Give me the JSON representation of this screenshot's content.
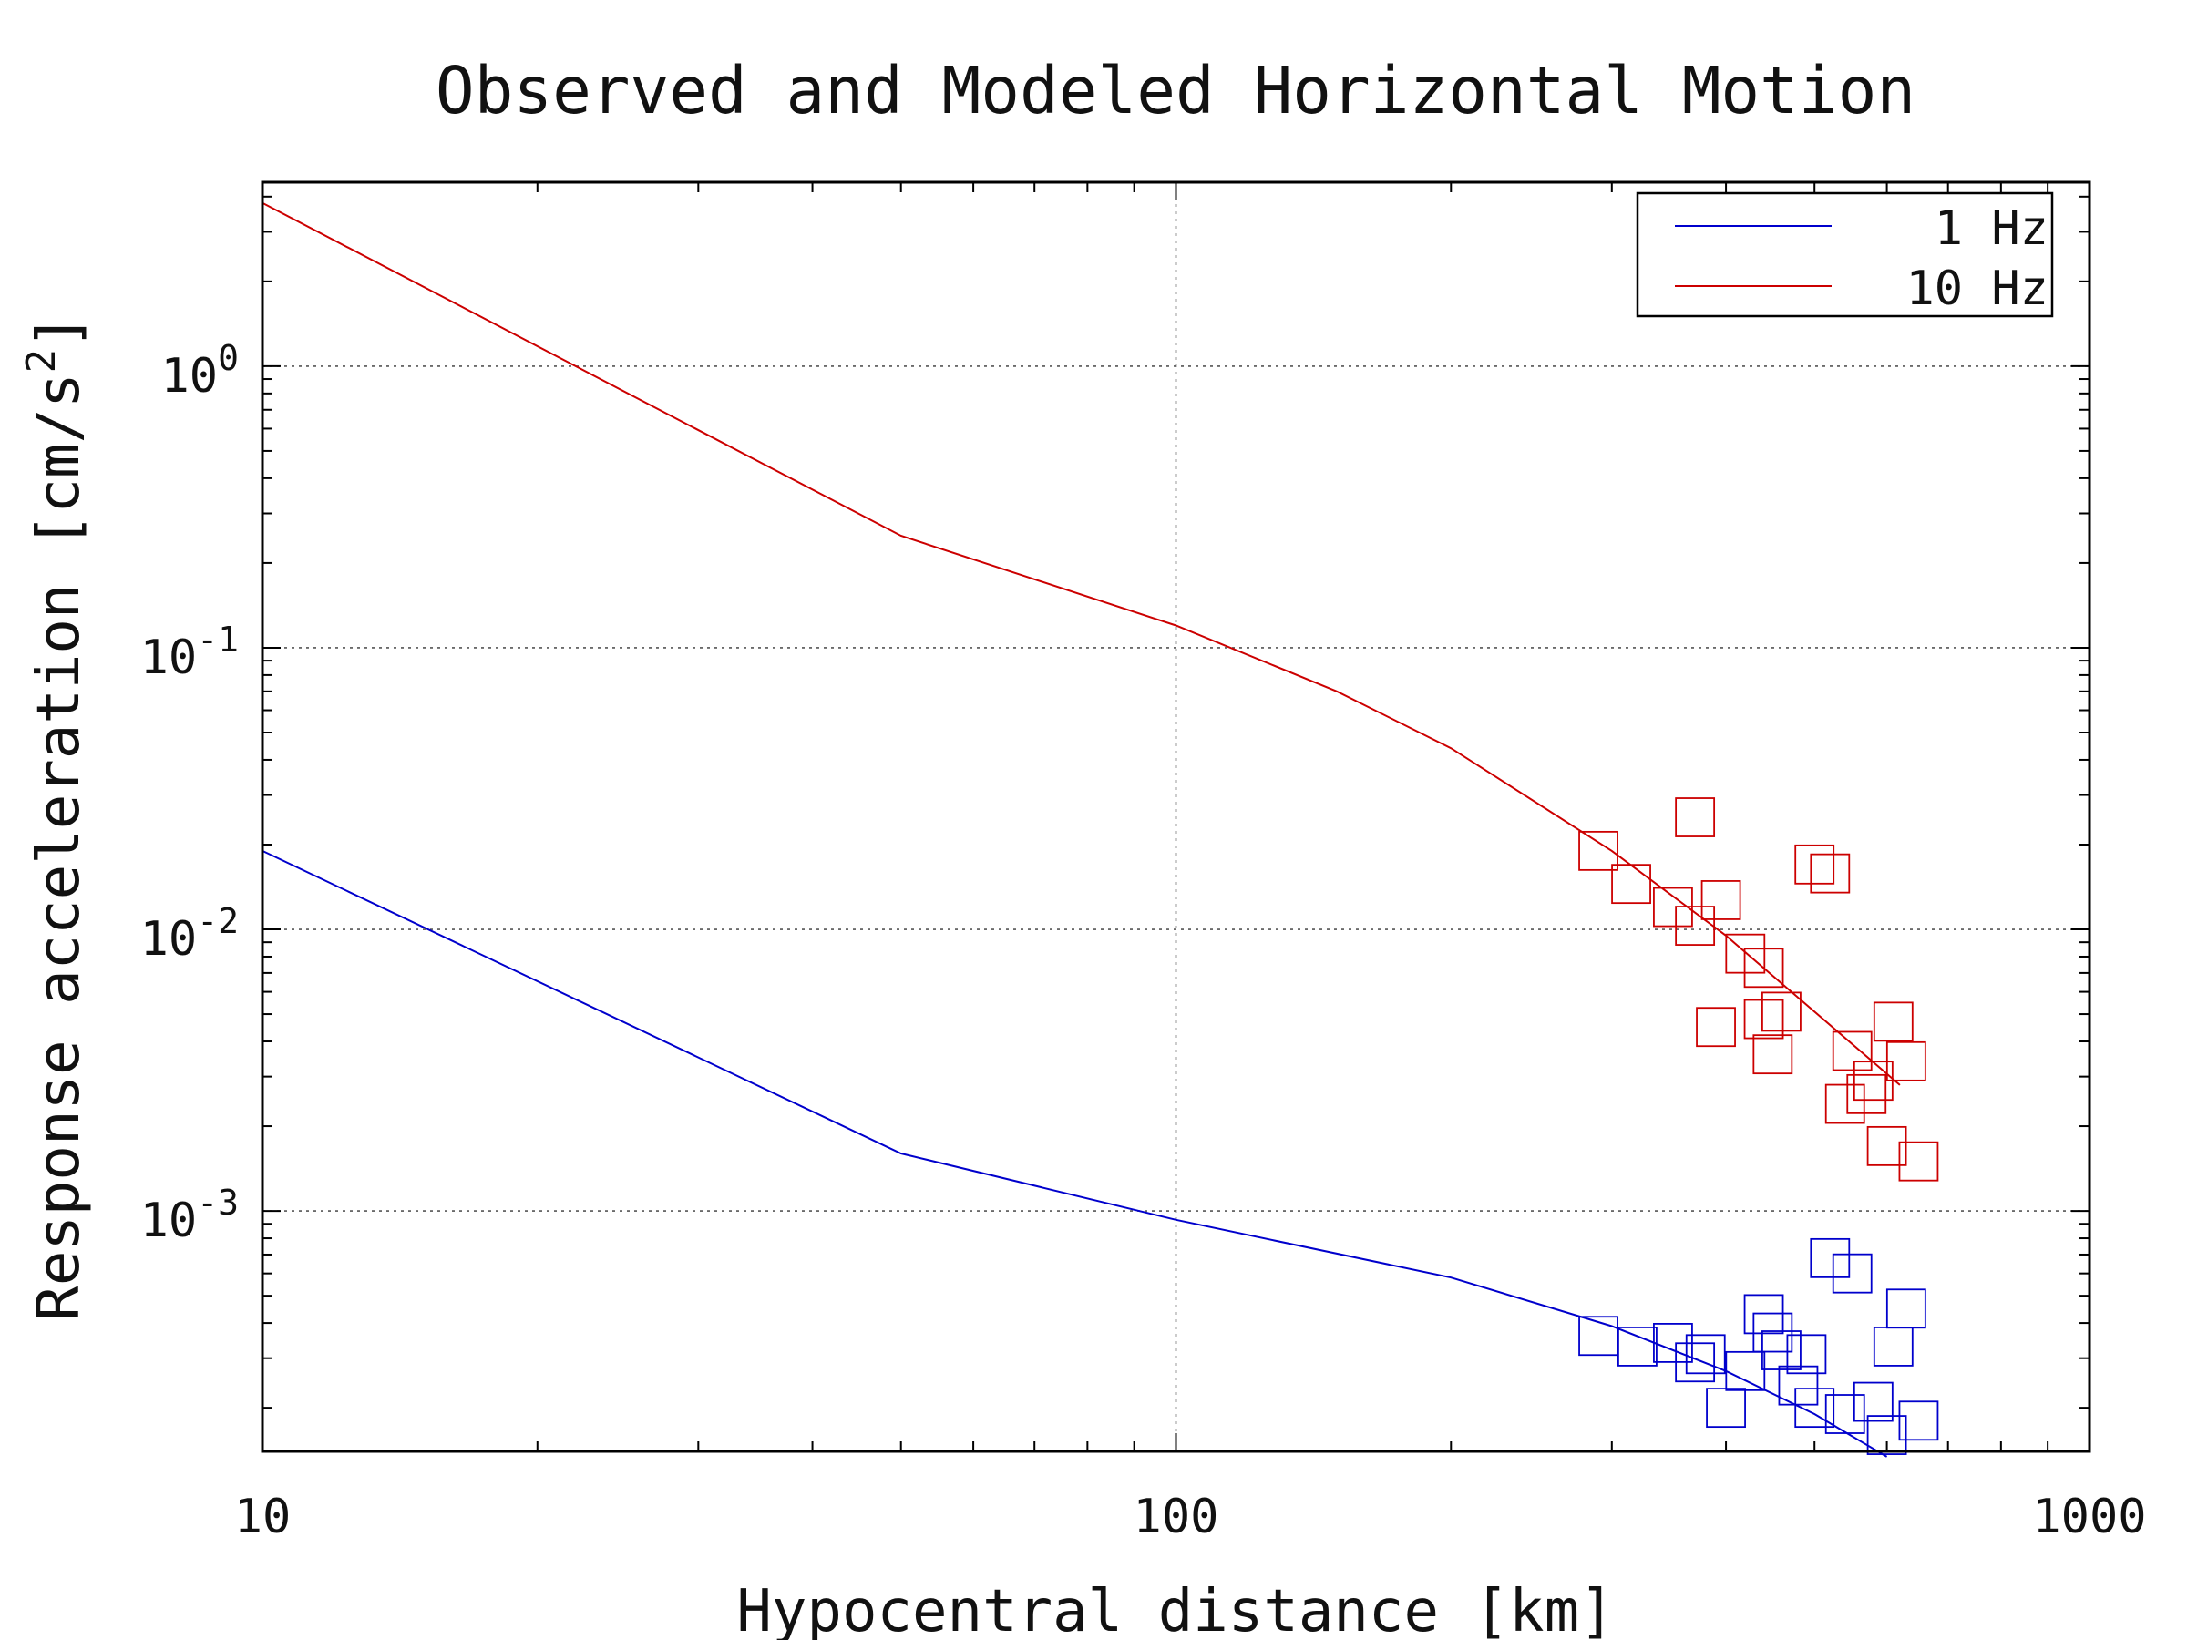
{
  "chart_data": {
    "type": "scatter",
    "title": "Observed and Modeled Horizontal Motion",
    "xlabel": "Hypocentral distance [km]",
    "ylabel": "Response acceleration [cm/s",
    "ylabel_exponent": "2",
    "ylabel_close": "]",
    "x_scale": "log",
    "y_scale": "log",
    "xlim": [
      10,
      1000
    ],
    "ylim": [
      0.00014,
      4.5
    ],
    "x_ticks": [
      {
        "value": 10,
        "label": "10"
      },
      {
        "value": 100,
        "label": "100"
      },
      {
        "value": 1000,
        "label": "1000"
      }
    ],
    "y_ticks": [
      {
        "value": 1,
        "base": "10",
        "exp": "0"
      },
      {
        "value": 0.1,
        "base": "10",
        "exp": "-1"
      },
      {
        "value": 0.01,
        "base": "10",
        "exp": "-2"
      },
      {
        "value": 0.001,
        "base": "10",
        "exp": "-3"
      }
    ],
    "grid": true,
    "legend_position": "top-right",
    "series": [
      {
        "name": "1 Hz",
        "color": "#0000cc",
        "line": {
          "x": [
            10,
            50,
            100,
            200,
            300,
            400,
            500,
            600
          ],
          "y": [
            0.019,
            0.0016,
            0.00093,
            0.00058,
            0.00039,
            0.00027,
            0.00019,
            0.000134
          ]
        },
        "points": {
          "x": [
            290,
            320,
            350,
            370,
            380,
            400,
            420,
            440,
            450,
            460,
            480,
            490,
            500,
            520,
            540,
            550,
            580,
            600,
            610,
            630,
            650
          ],
          "y": [
            0.00036,
            0.00033,
            0.00034,
            0.00029,
            0.00031,
            0.0002,
            0.00027,
            0.00043,
            0.00037,
            0.00032,
            0.00024,
            0.00031,
            0.0002,
            0.00068,
            0.00019,
            0.0006,
            0.00021,
            0.00016,
            0.00033,
            0.00045,
            0.00018
          ]
        }
      },
      {
        "name": "10 Hz",
        "color": "#cc0000",
        "line": {
          "x": [
            10,
            50,
            100,
            150,
            200,
            300,
            400,
            500,
            620
          ],
          "y": [
            3.8,
            0.25,
            0.12,
            0.07,
            0.044,
            0.019,
            0.0095,
            0.0051,
            0.0028
          ]
        },
        "points": {
          "x": [
            290,
            315,
            350,
            370,
            370,
            390,
            395,
            420,
            440,
            440,
            450,
            460,
            500,
            520,
            540,
            550,
            570,
            580,
            600,
            610,
            630,
            650
          ],
          "y": [
            0.019,
            0.0145,
            0.012,
            0.0103,
            0.025,
            0.0045,
            0.0127,
            0.0082,
            0.0073,
            0.0048,
            0.0036,
            0.0051,
            0.017,
            0.0158,
            0.0024,
            0.0037,
            0.0026,
            0.0029,
            0.0017,
            0.0047,
            0.0034,
            0.0015
          ]
        }
      }
    ]
  }
}
